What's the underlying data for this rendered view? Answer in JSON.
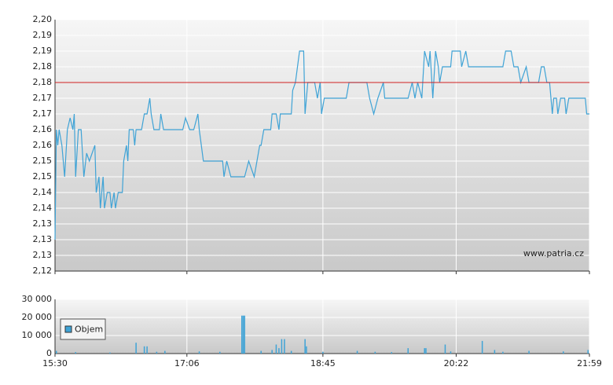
{
  "chart_data": [
    {
      "type": "line",
      "color": "#3fa3d6",
      "annotation": "www.patria.cz",
      "hline": 2.18,
      "hline_color": "#d02020",
      "xlim": [
        930,
        1319
      ],
      "ylim": [
        2.12,
        2.2
      ],
      "yticks": [
        {
          "value": 2.12,
          "label": "2,12"
        },
        {
          "value": 2.125,
          "label": "2,13"
        },
        {
          "value": 2.13,
          "label": "2,13"
        },
        {
          "value": 2.135,
          "label": "2,13"
        },
        {
          "value": 2.14,
          "label": "2,14"
        },
        {
          "value": 2.145,
          "label": "2,14"
        },
        {
          "value": 2.15,
          "label": "2,15"
        },
        {
          "value": 2.155,
          "label": "2,15"
        },
        {
          "value": 2.16,
          "label": "2,16"
        },
        {
          "value": 2.165,
          "label": "2,16"
        },
        {
          "value": 2.17,
          "label": "2,17"
        },
        {
          "value": 2.175,
          "label": "2,17"
        },
        {
          "value": 2.18,
          "label": "2,18"
        },
        {
          "value": 2.185,
          "label": "2,18"
        },
        {
          "value": 2.19,
          "label": "2,19"
        },
        {
          "value": 2.195,
          "label": "2,19"
        },
        {
          "value": 2.2,
          "label": "2,20"
        }
      ],
      "x": [
        930,
        931,
        932,
        933,
        935,
        937,
        939,
        941,
        943,
        944,
        945,
        947,
        949,
        951,
        953,
        955,
        957,
        959,
        960,
        962,
        963,
        965,
        966,
        968,
        970,
        971,
        973,
        974,
        976,
        979,
        980,
        982,
        983,
        984,
        987,
        988,
        989,
        993,
        995,
        997,
        999,
        1000,
        1002,
        1006,
        1007,
        1009,
        1023,
        1025,
        1028,
        1031,
        1034,
        1035,
        1038,
        1052,
        1053,
        1055,
        1058,
        1068,
        1071,
        1073,
        1075,
        1079,
        1080,
        1082,
        1087,
        1088,
        1091,
        1093,
        1094,
        1102,
        1103,
        1105,
        1108,
        1111,
        1112,
        1114,
        1119,
        1121,
        1123,
        1124,
        1126,
        1142,
        1144,
        1157,
        1159,
        1162,
        1165,
        1169,
        1170,
        1175,
        1187,
        1190,
        1192,
        1194,
        1197,
        1199,
        1202,
        1203,
        1205,
        1207,
        1209,
        1210,
        1212,
        1218,
        1219,
        1225,
        1226,
        1229,
        1231,
        1256,
        1258,
        1262,
        1264,
        1267,
        1269,
        1273,
        1275,
        1282,
        1284,
        1286,
        1288,
        1290,
        1292,
        1293,
        1295,
        1296,
        1298,
        1301,
        1302,
        1304,
        1316,
        1317,
        1319
      ],
      "values": [
        2.13,
        2.165,
        2.16,
        2.165,
        2.16,
        2.15,
        2.165,
        2.16875,
        2.165,
        2.17,
        2.15,
        2.165,
        2.165,
        2.15,
        2.1575,
        2.155,
        2.1575,
        2.16,
        2.145,
        2.15,
        2.14,
        2.15,
        2.14,
        2.145,
        2.145,
        2.14,
        2.145,
        2.14,
        2.145,
        2.145,
        2.155,
        2.16,
        2.155,
        2.165,
        2.165,
        2.16,
        2.165,
        2.165,
        2.17,
        2.17,
        2.175,
        2.17,
        2.165,
        2.165,
        2.17,
        2.165,
        2.165,
        2.16875,
        2.165,
        2.165,
        2.17,
        2.165,
        2.155,
        2.155,
        2.15,
        2.155,
        2.15,
        2.15,
        2.155,
        2.1525,
        2.15,
        2.16,
        2.16,
        2.165,
        2.165,
        2.17,
        2.17,
        2.165,
        2.17,
        2.17,
        2.1775,
        2.18,
        2.19,
        2.19,
        2.17,
        2.18,
        2.18,
        2.175,
        2.18,
        2.17,
        2.175,
        2.175,
        2.18,
        2.18,
        2.175,
        2.17,
        2.175,
        2.18,
        2.175,
        2.175,
        2.175,
        2.18,
        2.175,
        2.18,
        2.175,
        2.19,
        2.185,
        2.19,
        2.175,
        2.19,
        2.185,
        2.18,
        2.185,
        2.185,
        2.19,
        2.19,
        2.185,
        2.19,
        2.185,
        2.185,
        2.19,
        2.19,
        2.185,
        2.185,
        2.18,
        2.185,
        2.18,
        2.18,
        2.185,
        2.185,
        2.18,
        2.18,
        2.17,
        2.175,
        2.175,
        2.17,
        2.175,
        2.175,
        2.17,
        2.175,
        2.175,
        2.17,
        2.17
      ]
    },
    {
      "type": "bar",
      "xlim": [
        930,
        1319
      ],
      "ylim": [
        0,
        30000
      ],
      "legend": "upper-left-inside",
      "yticks": [
        0,
        {
          "value": 10000,
          "label": "10 000"
        },
        {
          "value": 20000,
          "label": "20 000"
        },
        {
          "value": 30000,
          "label": "30 000"
        }
      ],
      "xticks": [
        {
          "value": 930,
          "label": "15:30"
        },
        {
          "value": 1026,
          "label": "17:06"
        },
        {
          "value": 1125,
          "label": "18:45"
        },
        {
          "value": 1222,
          "label": "20:22"
        },
        {
          "value": 1319,
          "label": "21:59"
        }
      ],
      "x": [
        931,
        945,
        970,
        989,
        995,
        997,
        1004,
        1010,
        1035,
        1050,
        1066,
        1067,
        1068,
        1080,
        1088,
        1091,
        1093,
        1095,
        1097,
        1102,
        1112,
        1113,
        1125,
        1150,
        1163,
        1175,
        1187,
        1199,
        1200,
        1214,
        1218,
        1241,
        1250,
        1256,
        1275,
        1300,
        1318
      ],
      "series": [
        {
          "name": "Objem",
          "color": "#3fa3d6",
          "values": [
            1500,
            800,
            600,
            6000,
            4000,
            4000,
            1000,
            1500,
            1200,
            1000,
            21000,
            21000,
            21000,
            1500,
            2000,
            5000,
            3000,
            8000,
            8000,
            1500,
            8000,
            4000,
            1000,
            1500,
            1000,
            800,
            3000,
            3000,
            3000,
            5000,
            1200,
            7000,
            2000,
            1000,
            1500,
            1200,
            2000
          ]
        }
      ]
    }
  ]
}
